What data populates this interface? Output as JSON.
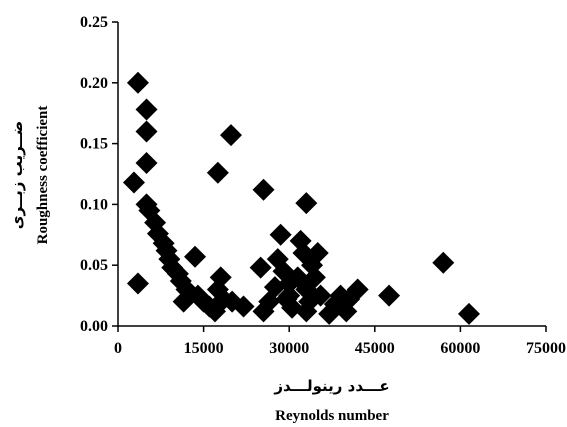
{
  "chart_data": {
    "type": "scatter",
    "title": "",
    "xlabel": "Reynolds number",
    "xlabel_fa": "عـــدد رينولـــدز",
    "ylabel": "Roughness coefficient",
    "ylabel_fa": "ضــريب زبــرى",
    "xlim": [
      0,
      75000
    ],
    "ylim": [
      0,
      0.25
    ],
    "xticks": [
      0,
      15000,
      30000,
      45000,
      60000,
      75000
    ],
    "xtick_labels": [
      "0",
      "15000",
      "30000",
      "45000",
      "60000",
      "75000"
    ],
    "yticks": [
      0,
      0.05,
      0.1,
      0.15,
      0.2,
      0.25
    ],
    "ytick_labels": [
      "0.00",
      "0.05",
      "0.10",
      "0.15",
      "0.20",
      "0.25"
    ],
    "grid": false,
    "marker": "diamond",
    "marker_color": "#000000",
    "points": [
      [
        3500,
        0.2
      ],
      [
        5000,
        0.178
      ],
      [
        5000,
        0.16
      ],
      [
        5000,
        0.134
      ],
      [
        2800,
        0.118
      ],
      [
        19800,
        0.157
      ],
      [
        17500,
        0.126
      ],
      [
        25500,
        0.112
      ],
      [
        33000,
        0.101
      ],
      [
        5000,
        0.1
      ],
      [
        5500,
        0.095
      ],
      [
        6500,
        0.085
      ],
      [
        7000,
        0.076
      ],
      [
        8000,
        0.068
      ],
      [
        8500,
        0.062
      ],
      [
        9000,
        0.055
      ],
      [
        9500,
        0.048
      ],
      [
        10500,
        0.043
      ],
      [
        11000,
        0.037
      ],
      [
        12000,
        0.03
      ],
      [
        11500,
        0.02
      ],
      [
        13500,
        0.057
      ],
      [
        14000,
        0.025
      ],
      [
        15000,
        0.02
      ],
      [
        16000,
        0.016
      ],
      [
        17000,
        0.012
      ],
      [
        17500,
        0.03
      ],
      [
        18000,
        0.04
      ],
      [
        18500,
        0.022
      ],
      [
        3500,
        0.035
      ],
      [
        20000,
        0.02
      ],
      [
        22000,
        0.016
      ],
      [
        25000,
        0.048
      ],
      [
        25500,
        0.012
      ],
      [
        26500,
        0.02
      ],
      [
        27500,
        0.032
      ],
      [
        28000,
        0.055
      ],
      [
        28500,
        0.075
      ],
      [
        29000,
        0.045
      ],
      [
        30000,
        0.025
      ],
      [
        30500,
        0.015
      ],
      [
        31500,
        0.04
      ],
      [
        32000,
        0.07
      ],
      [
        32500,
        0.06
      ],
      [
        33000,
        0.03
      ],
      [
        33500,
        0.02
      ],
      [
        34000,
        0.05
      ],
      [
        34500,
        0.04
      ],
      [
        35000,
        0.06
      ],
      [
        35500,
        0.025
      ],
      [
        37000,
        0.01
      ],
      [
        38000,
        0.018
      ],
      [
        39000,
        0.025
      ],
      [
        40000,
        0.012
      ],
      [
        42000,
        0.03
      ],
      [
        47500,
        0.025
      ],
      [
        57000,
        0.052
      ],
      [
        61500,
        0.01
      ],
      [
        29500,
        0.022
      ],
      [
        30000,
        0.035
      ],
      [
        33000,
        0.012
      ],
      [
        40500,
        0.022
      ]
    ]
  }
}
